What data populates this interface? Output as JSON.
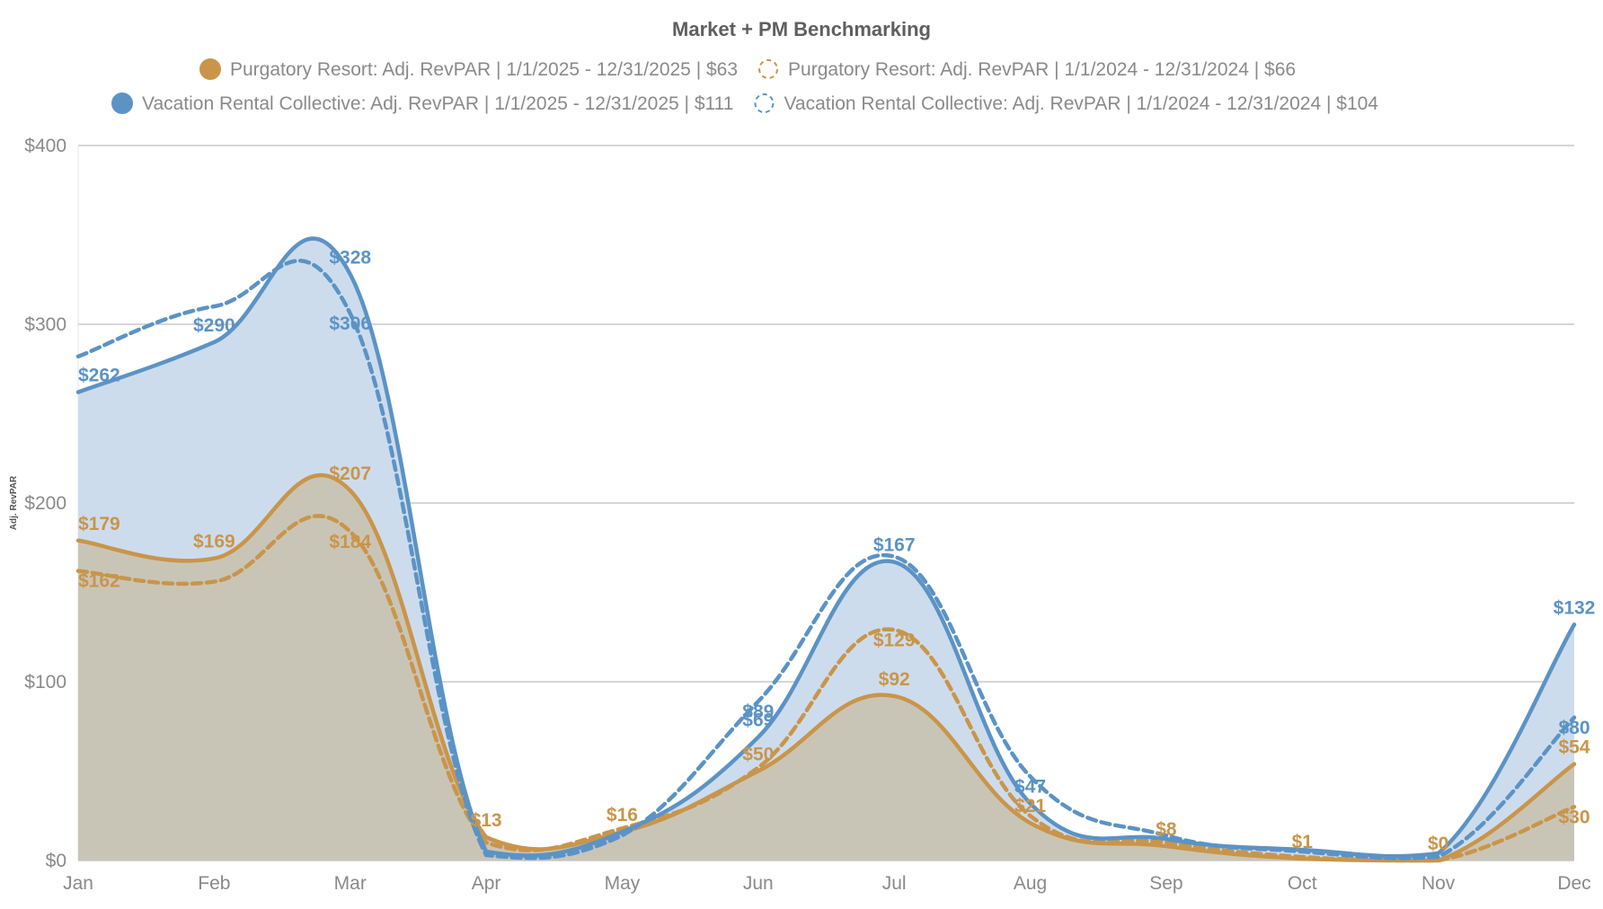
{
  "chart_data": {
    "type": "area",
    "title": "Market + PM Benchmarking",
    "ylabel": "Adj. RevPAR",
    "xlabel": "",
    "ylim": [
      0,
      400
    ],
    "y_ticks": [
      0,
      100,
      200,
      300,
      400
    ],
    "y_tick_labels": [
      "$0",
      "$100",
      "$200",
      "$300",
      "$400"
    ],
    "grid": true,
    "legend_position": "top",
    "categories": [
      "Jan",
      "Feb",
      "Mar",
      "Apr",
      "May",
      "Jun",
      "Jul",
      "Aug",
      "Sep",
      "Oct",
      "Nov",
      "Dec"
    ],
    "series": [
      {
        "name": "Purgatory Resort: Adj. RevPAR | 1/1/2025 - 12/31/2025 | $63",
        "color": "#c9954a",
        "style": "solid",
        "filled": true,
        "fill_color": "#c9c5b6",
        "values": [
          179,
          169,
          207,
          13,
          16,
          50,
          92,
          21,
          8,
          1,
          0,
          54
        ],
        "labels": [
          "$179",
          "$169",
          "$207",
          "$13",
          "$16",
          "$50",
          "$92",
          "$21",
          "$8",
          "$1",
          "$0",
          "$54"
        ]
      },
      {
        "name": "Purgatory Resort: Adj. RevPAR | 1/1/2024 - 12/31/2024 | $66",
        "color": "#c9954a",
        "style": "dashed",
        "filled": false,
        "values": [
          162,
          156,
          184,
          10,
          18,
          52,
          129,
          25,
          10,
          2,
          0,
          30
        ],
        "labels": [
          "$162",
          "",
          "$184",
          "",
          "",
          "",
          "$129",
          "",
          "",
          "",
          "",
          "$30"
        ]
      },
      {
        "name": "Vacation Rental Collective: Adj. RevPAR | 1/1/2025 - 12/31/2025 | $111",
        "color": "#5b93c6",
        "style": "solid",
        "filled": true,
        "fill_color": "#cddcec",
        "values": [
          262,
          290,
          328,
          5,
          16,
          69,
          167,
          32,
          12,
          6,
          4,
          132
        ],
        "labels": [
          "$262",
          "$290",
          "$328",
          "",
          "",
          "$69",
          "$167",
          "",
          "",
          "",
          "",
          "$132"
        ]
      },
      {
        "name": "Vacation Rental Collective: Adj. RevPAR | 1/1/2024 - 12/31/2024 | $104",
        "color": "#5b93c6",
        "style": "dashed",
        "filled": false,
        "values": [
          282,
          310,
          306,
          3,
          14,
          89,
          170,
          47,
          14,
          5,
          2,
          80
        ],
        "labels": [
          "",
          "",
          "$306",
          "",
          "",
          "$89",
          "",
          "$47",
          "",
          "",
          "",
          "$80"
        ]
      }
    ]
  }
}
